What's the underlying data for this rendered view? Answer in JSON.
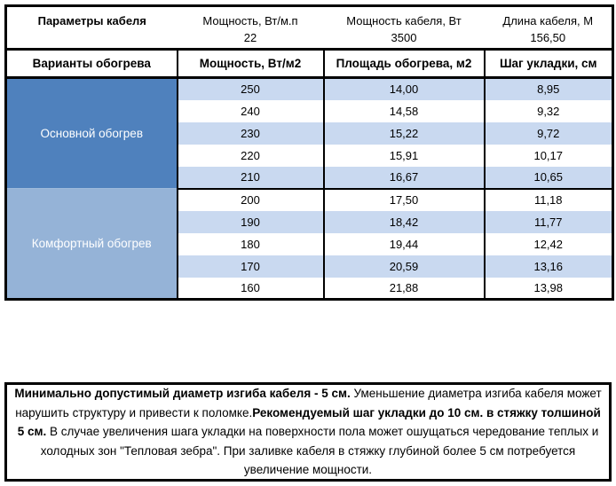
{
  "colors": {
    "border_black": "#000000",
    "primary_section_blue": "#4f81bd",
    "comfort_section_blue": "#95b3d7",
    "stripe_blue": "#c9d9f0",
    "section_text_white": "#ffffff"
  },
  "cable_params": {
    "title": "Параметры кабеля",
    "columns": [
      {
        "label": "Мощность, Вт/м.п",
        "value": "22"
      },
      {
        "label": "Мощность кабеля, Вт",
        "value": "3500"
      },
      {
        "label": "Длина кабеля, М",
        "value": "156,50"
      }
    ]
  },
  "heating_table": {
    "headers": [
      "Варианты обогрева",
      "Мощность, Вт/м2",
      "Площадь обогрева, м2",
      "Шаг укладки, см"
    ],
    "sections": [
      {
        "name": "Основной обогрев",
        "rows": [
          [
            "250",
            "14,00",
            "8,95"
          ],
          [
            "240",
            "14,58",
            "9,32"
          ],
          [
            "230",
            "15,22",
            "9,72"
          ],
          [
            "220",
            "15,91",
            "10,17"
          ],
          [
            "210",
            "16,67",
            "10,65"
          ]
        ]
      },
      {
        "name": "Комфортный обогрев",
        "rows": [
          [
            "200",
            "17,50",
            "11,18"
          ],
          [
            "190",
            "18,42",
            "11,77"
          ],
          [
            "180",
            "19,44",
            "12,42"
          ],
          [
            "170",
            "20,59",
            "13,16"
          ],
          [
            "160",
            "21,88",
            "13,98"
          ]
        ]
      }
    ]
  },
  "note": {
    "segments": [
      {
        "bold": true,
        "text": "Минимально допустимый диаметр изгиба кабеля - 5 см."
      },
      {
        "bold": false,
        "text": " Уменьшение диаметра изгиба кабеля может нарушить структуру и привести к поломке."
      },
      {
        "bold": true,
        "text": "Рекомендуемый шаг укладки до 10 см. в стяжку толшиной 5 см."
      },
      {
        "bold": false,
        "text": " В случае увеличения шага укладки на поверхности пола может ошущаться чередование теплых и холодных зон \"Тепловая зебра\". При заливке кабеля в стяжку глубиной более 5 см потребуется увеличение мощности."
      }
    ]
  }
}
